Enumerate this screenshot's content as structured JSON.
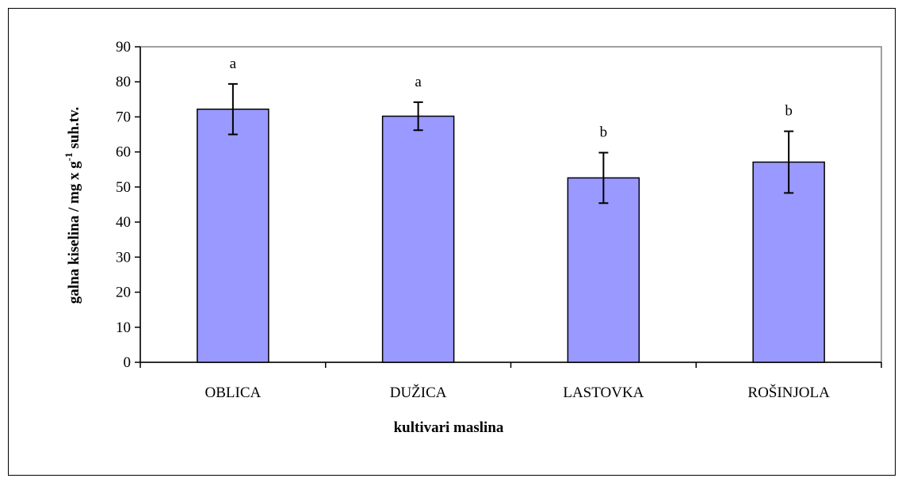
{
  "chart_data": {
    "type": "bar",
    "title": "",
    "xlabel": "kultivari maslina",
    "ylabel": {
      "main": "galna kiselina / mg x g",
      "sup": "-1",
      "tail": " suh.tv."
    },
    "categories": [
      "OBLICA",
      "DUŽICA",
      "LASTOVKA",
      "ROŠINJOLA"
    ],
    "values": [
      72.2,
      70.2,
      52.6,
      57.1
    ],
    "error": [
      7.2,
      4.0,
      7.2,
      8.8
    ],
    "significance": [
      "a",
      "a",
      "b",
      "b"
    ],
    "ylim": [
      0,
      90
    ],
    "yticks": [
      0,
      10,
      20,
      30,
      40,
      50,
      60,
      70,
      80,
      90
    ],
    "grid": false,
    "legend": "none",
    "bar_color": "#9999ff",
    "bar_stroke": "#000000"
  }
}
